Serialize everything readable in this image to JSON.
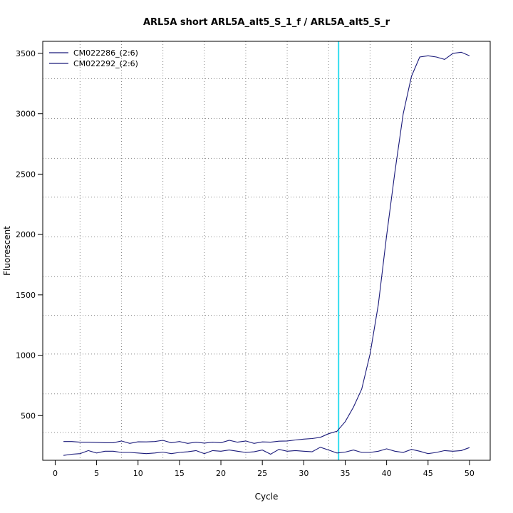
{
  "chart_data": {
    "type": "line",
    "title": "ARL5A short ARL5A_alt5_S_1_f / ARL5A_alt5_S_r",
    "xlabel": "Cycle",
    "ylabel": "Fluorescent",
    "xlim": [
      -1.5,
      52.5
    ],
    "ylim": [
      130,
      3600
    ],
    "x_ticks": [
      0,
      5,
      10,
      15,
      20,
      25,
      30,
      35,
      40,
      45,
      50
    ],
    "y_ticks": [
      500,
      1000,
      1500,
      2000,
      2500,
      3000,
      3500
    ],
    "grid": true,
    "grid_x": [
      3,
      8,
      13,
      18,
      23,
      28,
      33,
      38,
      43,
      48
    ],
    "grid_y": [
      360,
      680,
      1010,
      1330,
      1650,
      1980,
      2310,
      2630,
      2960,
      3290
    ],
    "legend_position": "top-left",
    "threshold": {
      "x": 34.2,
      "color": "#33ddf0"
    },
    "series": [
      {
        "name": "CM022286_(2:6)",
        "color": "#1a1a7a",
        "x": [
          1,
          2,
          3,
          4,
          5,
          6,
          7,
          8,
          9,
          10,
          11,
          12,
          13,
          14,
          15,
          16,
          17,
          18,
          19,
          20,
          21,
          22,
          23,
          24,
          25,
          26,
          27,
          28,
          29,
          30,
          31,
          32,
          33,
          34,
          35,
          36,
          37,
          38,
          39,
          40,
          41,
          42,
          43,
          44,
          45,
          46,
          47,
          48,
          49,
          50
        ],
        "values": [
          285,
          285,
          280,
          280,
          278,
          275,
          275,
          290,
          270,
          283,
          282,
          285,
          295,
          275,
          285,
          270,
          280,
          272,
          280,
          275,
          295,
          280,
          290,
          270,
          282,
          280,
          288,
          290,
          298,
          305,
          310,
          320,
          350,
          370,
          450,
          570,
          720,
          1010,
          1420,
          1990,
          2520,
          3000,
          3310,
          3470,
          3480,
          3470,
          3450,
          3500,
          3510,
          3480
        ]
      },
      {
        "name": "CM022292_(2:6)",
        "color": "#1a1a7a",
        "x": [
          1,
          2,
          3,
          4,
          5,
          6,
          7,
          8,
          9,
          10,
          11,
          12,
          13,
          14,
          15,
          16,
          17,
          18,
          19,
          20,
          21,
          22,
          23,
          24,
          25,
          26,
          27,
          28,
          29,
          30,
          31,
          32,
          33,
          34,
          35,
          36,
          37,
          38,
          39,
          40,
          41,
          42,
          43,
          44,
          45,
          46,
          47,
          48,
          49,
          50
        ],
        "values": [
          170,
          180,
          185,
          210,
          190,
          205,
          205,
          195,
          195,
          190,
          185,
          190,
          198,
          185,
          195,
          200,
          210,
          185,
          210,
          205,
          215,
          205,
          195,
          200,
          215,
          180,
          220,
          205,
          210,
          205,
          200,
          238,
          215,
          190,
          198,
          215,
          195,
          195,
          205,
          225,
          205,
          195,
          220,
          205,
          185,
          195,
          210,
          205,
          210,
          235
        ]
      }
    ]
  }
}
